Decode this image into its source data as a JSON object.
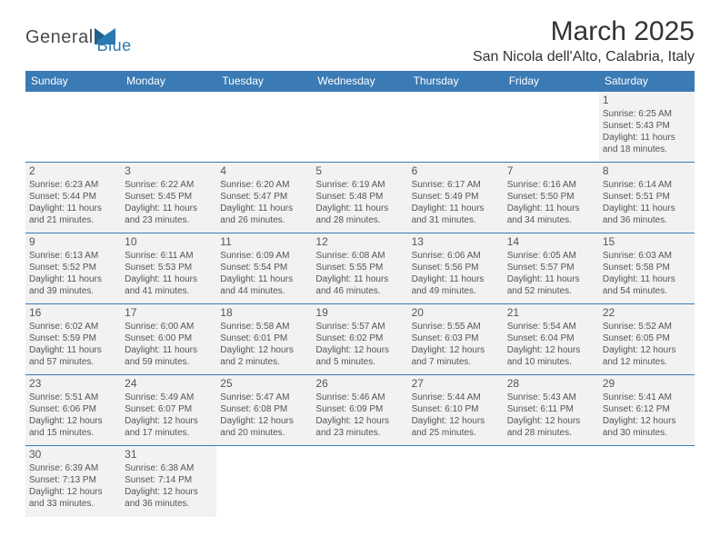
{
  "brand": {
    "part1": "General",
    "part2": "Blue"
  },
  "title": "March 2025",
  "location": "San Nicola dell'Alto, Calabria, Italy",
  "colors": {
    "header_bg": "#3a7ab5",
    "header_text": "#ffffff",
    "cell_bg": "#f2f2f2",
    "cell_border": "#3a7ab5",
    "text": "#555555",
    "title_text": "#333333",
    "brand_gray": "#4a4a4a",
    "brand_blue": "#2a7ab0",
    "page_bg": "#ffffff"
  },
  "weekdays": [
    "Sunday",
    "Monday",
    "Tuesday",
    "Wednesday",
    "Thursday",
    "Friday",
    "Saturday"
  ],
  "layout": {
    "columns": 7,
    "rows": 6,
    "first_weekday_index": 6,
    "days_in_month": 31
  },
  "days": {
    "1": {
      "sunrise": "Sunrise: 6:25 AM",
      "sunset": "Sunset: 5:43 PM",
      "daylight": "Daylight: 11 hours and 18 minutes."
    },
    "2": {
      "sunrise": "Sunrise: 6:23 AM",
      "sunset": "Sunset: 5:44 PM",
      "daylight": "Daylight: 11 hours and 21 minutes."
    },
    "3": {
      "sunrise": "Sunrise: 6:22 AM",
      "sunset": "Sunset: 5:45 PM",
      "daylight": "Daylight: 11 hours and 23 minutes."
    },
    "4": {
      "sunrise": "Sunrise: 6:20 AM",
      "sunset": "Sunset: 5:47 PM",
      "daylight": "Daylight: 11 hours and 26 minutes."
    },
    "5": {
      "sunrise": "Sunrise: 6:19 AM",
      "sunset": "Sunset: 5:48 PM",
      "daylight": "Daylight: 11 hours and 28 minutes."
    },
    "6": {
      "sunrise": "Sunrise: 6:17 AM",
      "sunset": "Sunset: 5:49 PM",
      "daylight": "Daylight: 11 hours and 31 minutes."
    },
    "7": {
      "sunrise": "Sunrise: 6:16 AM",
      "sunset": "Sunset: 5:50 PM",
      "daylight": "Daylight: 11 hours and 34 minutes."
    },
    "8": {
      "sunrise": "Sunrise: 6:14 AM",
      "sunset": "Sunset: 5:51 PM",
      "daylight": "Daylight: 11 hours and 36 minutes."
    },
    "9": {
      "sunrise": "Sunrise: 6:13 AM",
      "sunset": "Sunset: 5:52 PM",
      "daylight": "Daylight: 11 hours and 39 minutes."
    },
    "10": {
      "sunrise": "Sunrise: 6:11 AM",
      "sunset": "Sunset: 5:53 PM",
      "daylight": "Daylight: 11 hours and 41 minutes."
    },
    "11": {
      "sunrise": "Sunrise: 6:09 AM",
      "sunset": "Sunset: 5:54 PM",
      "daylight": "Daylight: 11 hours and 44 minutes."
    },
    "12": {
      "sunrise": "Sunrise: 6:08 AM",
      "sunset": "Sunset: 5:55 PM",
      "daylight": "Daylight: 11 hours and 46 minutes."
    },
    "13": {
      "sunrise": "Sunrise: 6:06 AM",
      "sunset": "Sunset: 5:56 PM",
      "daylight": "Daylight: 11 hours and 49 minutes."
    },
    "14": {
      "sunrise": "Sunrise: 6:05 AM",
      "sunset": "Sunset: 5:57 PM",
      "daylight": "Daylight: 11 hours and 52 minutes."
    },
    "15": {
      "sunrise": "Sunrise: 6:03 AM",
      "sunset": "Sunset: 5:58 PM",
      "daylight": "Daylight: 11 hours and 54 minutes."
    },
    "16": {
      "sunrise": "Sunrise: 6:02 AM",
      "sunset": "Sunset: 5:59 PM",
      "daylight": "Daylight: 11 hours and 57 minutes."
    },
    "17": {
      "sunrise": "Sunrise: 6:00 AM",
      "sunset": "Sunset: 6:00 PM",
      "daylight": "Daylight: 11 hours and 59 minutes."
    },
    "18": {
      "sunrise": "Sunrise: 5:58 AM",
      "sunset": "Sunset: 6:01 PM",
      "daylight": "Daylight: 12 hours and 2 minutes."
    },
    "19": {
      "sunrise": "Sunrise: 5:57 AM",
      "sunset": "Sunset: 6:02 PM",
      "daylight": "Daylight: 12 hours and 5 minutes."
    },
    "20": {
      "sunrise": "Sunrise: 5:55 AM",
      "sunset": "Sunset: 6:03 PM",
      "daylight": "Daylight: 12 hours and 7 minutes."
    },
    "21": {
      "sunrise": "Sunrise: 5:54 AM",
      "sunset": "Sunset: 6:04 PM",
      "daylight": "Daylight: 12 hours and 10 minutes."
    },
    "22": {
      "sunrise": "Sunrise: 5:52 AM",
      "sunset": "Sunset: 6:05 PM",
      "daylight": "Daylight: 12 hours and 12 minutes."
    },
    "23": {
      "sunrise": "Sunrise: 5:51 AM",
      "sunset": "Sunset: 6:06 PM",
      "daylight": "Daylight: 12 hours and 15 minutes."
    },
    "24": {
      "sunrise": "Sunrise: 5:49 AM",
      "sunset": "Sunset: 6:07 PM",
      "daylight": "Daylight: 12 hours and 17 minutes."
    },
    "25": {
      "sunrise": "Sunrise: 5:47 AM",
      "sunset": "Sunset: 6:08 PM",
      "daylight": "Daylight: 12 hours and 20 minutes."
    },
    "26": {
      "sunrise": "Sunrise: 5:46 AM",
      "sunset": "Sunset: 6:09 PM",
      "daylight": "Daylight: 12 hours and 23 minutes."
    },
    "27": {
      "sunrise": "Sunrise: 5:44 AM",
      "sunset": "Sunset: 6:10 PM",
      "daylight": "Daylight: 12 hours and 25 minutes."
    },
    "28": {
      "sunrise": "Sunrise: 5:43 AM",
      "sunset": "Sunset: 6:11 PM",
      "daylight": "Daylight: 12 hours and 28 minutes."
    },
    "29": {
      "sunrise": "Sunrise: 5:41 AM",
      "sunset": "Sunset: 6:12 PM",
      "daylight": "Daylight: 12 hours and 30 minutes."
    },
    "30": {
      "sunrise": "Sunrise: 6:39 AM",
      "sunset": "Sunset: 7:13 PM",
      "daylight": "Daylight: 12 hours and 33 minutes."
    },
    "31": {
      "sunrise": "Sunrise: 6:38 AM",
      "sunset": "Sunset: 7:14 PM",
      "daylight": "Daylight: 12 hours and 36 minutes."
    }
  }
}
